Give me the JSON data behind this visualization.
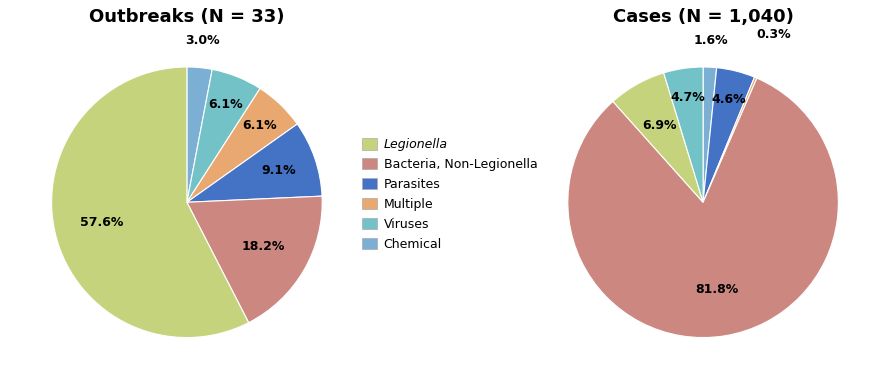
{
  "chart1_title": "Outbreaks (N = 33)",
  "chart2_title": "Cases (N = 1,040)",
  "categories": [
    "Legionella",
    "Bacteria, Non-Legionella",
    "Parasites",
    "Multiple",
    "Viruses",
    "Chemical"
  ],
  "colors": [
    "#c5d47c",
    "#cc8880",
    "#4472c4",
    "#e8a870",
    "#72c2c8",
    "#7bafd4"
  ],
  "outbreaks_values": [
    57.6,
    18.2,
    9.1,
    6.1,
    6.1,
    3.0
  ],
  "cases_values": [
    6.9,
    81.8,
    4.6,
    0.3,
    4.7,
    1.6
  ],
  "background_color": "#ffffff",
  "title_fontsize": 13,
  "label_fontsize": 9,
  "legend_fontsize": 9,
  "chart1_order": [
    5,
    4,
    3,
    2,
    1,
    0
  ],
  "chart2_order": [
    5,
    2,
    3,
    1,
    0,
    4
  ],
  "chart1_startangle": 90,
  "chart2_startangle": 90
}
